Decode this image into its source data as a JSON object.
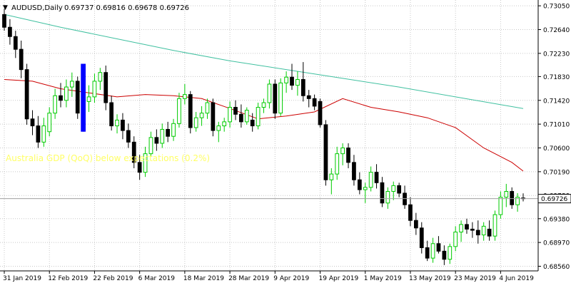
{
  "header": {
    "marker": "▼",
    "symbol_label": "AUDUSD,Daily",
    "ohlc_text": "0.69737 0.69816 0.69678 0.69726"
  },
  "annotation": {
    "text": "Australia GDP (QoQ) below expectations (0.2%)",
    "color": "#ffff66"
  },
  "colors": {
    "background": "#ffffff",
    "grid": "#c8c8c8",
    "bull_candle": "#00cc00",
    "bear_candle": "#000000",
    "highlight_bar": "#0000ff",
    "ma_fast": "#cc0000",
    "ma_slow": "#40c0a0",
    "current_price_line": "#a0a0a0",
    "price_tag_bg": "#ffffff"
  },
  "chart_data": {
    "type": "candlestick",
    "symbol": "AUDUSD",
    "timeframe": "Daily",
    "last": {
      "open": 0.69737,
      "high": 0.69816,
      "low": 0.69678,
      "close": 0.69726
    },
    "current_price_label": "0.69726",
    "y_axis": {
      "ticks": [
        "0.73050",
        "0.72640",
        "0.72230",
        "0.71830",
        "0.71420",
        "0.71010",
        "0.70600",
        "0.70190",
        "0.69780",
        "0.69380",
        "0.68970",
        "0.68560"
      ],
      "ylim": [
        0.6848,
        0.7315
      ]
    },
    "x_axis": {
      "labels": [
        {
          "label": "31 Jan 2019",
          "index": 0
        },
        {
          "label": "12 Feb 2019",
          "index": 8
        },
        {
          "label": "22 Feb 2019",
          "index": 16
        },
        {
          "label": "6 Mar 2019",
          "index": 24
        },
        {
          "label": "18 Mar 2019",
          "index": 32
        },
        {
          "label": "28 Mar 2019",
          "index": 40
        },
        {
          "label": "9 Apr 2019",
          "index": 48
        },
        {
          "label": "19 Apr 2019",
          "index": 56
        },
        {
          "label": "1 May 2019",
          "index": 64
        },
        {
          "label": "13 May 2019",
          "index": 72
        },
        {
          "label": "23 May 2019",
          "index": 80
        },
        {
          "label": "4 Jun 2019",
          "index": 88
        }
      ]
    },
    "highlight_index": 14,
    "candles": [
      [
        0.729,
        0.73,
        0.7262,
        0.7268
      ],
      [
        0.7268,
        0.7282,
        0.7238,
        0.7252
      ],
      [
        0.7252,
        0.7262,
        0.7215,
        0.723
      ],
      [
        0.723,
        0.7245,
        0.718,
        0.7195
      ],
      [
        0.7195,
        0.7205,
        0.71,
        0.711
      ],
      [
        0.711,
        0.7125,
        0.7082,
        0.7098
      ],
      [
        0.7098,
        0.7115,
        0.706,
        0.707
      ],
      [
        0.707,
        0.7112,
        0.7062,
        0.7098
      ],
      [
        0.7088,
        0.713,
        0.708,
        0.712
      ],
      [
        0.712,
        0.7162,
        0.711,
        0.715
      ],
      [
        0.715,
        0.7172,
        0.713,
        0.7142
      ],
      [
        0.7142,
        0.7178,
        0.713,
        0.7165
      ],
      [
        0.7165,
        0.719,
        0.7148,
        0.7175
      ],
      [
        0.7175,
        0.7183,
        0.711,
        0.712
      ],
      [
        0.7095,
        0.7205,
        0.7088,
        0.7178
      ],
      [
        0.714,
        0.7168,
        0.7122,
        0.7148
      ],
      [
        0.7148,
        0.7188,
        0.7138,
        0.7175
      ],
      [
        0.7175,
        0.7198,
        0.716,
        0.719
      ],
      [
        0.719,
        0.7202,
        0.7125,
        0.7138
      ],
      [
        0.7138,
        0.715,
        0.709,
        0.7098
      ],
      [
        0.7098,
        0.7118,
        0.7085,
        0.7108
      ],
      [
        0.7108,
        0.712,
        0.7075,
        0.709
      ],
      [
        0.709,
        0.7102,
        0.706,
        0.707
      ],
      [
        0.707,
        0.708,
        0.7025,
        0.7035
      ],
      [
        0.7035,
        0.7048,
        0.7005,
        0.7018
      ],
      [
        0.7018,
        0.7062,
        0.701,
        0.705
      ],
      [
        0.705,
        0.7088,
        0.7045,
        0.7078
      ],
      [
        0.7078,
        0.7092,
        0.7055,
        0.7068
      ],
      [
        0.7068,
        0.7102,
        0.706,
        0.7092
      ],
      [
        0.7092,
        0.7105,
        0.707,
        0.708
      ],
      [
        0.708,
        0.711,
        0.7072,
        0.7102
      ],
      [
        0.7102,
        0.7155,
        0.7095,
        0.7145
      ],
      [
        0.7145,
        0.717,
        0.7135,
        0.7152
      ],
      [
        0.7152,
        0.7158,
        0.7085,
        0.7095
      ],
      [
        0.7095,
        0.7122,
        0.7088,
        0.7112
      ],
      [
        0.7112,
        0.7132,
        0.7098,
        0.712
      ],
      [
        0.712,
        0.7145,
        0.711,
        0.7138
      ],
      [
        0.7138,
        0.7145,
        0.708,
        0.709
      ],
      [
        0.709,
        0.7105,
        0.707,
        0.7098
      ],
      [
        0.7098,
        0.7112,
        0.7088,
        0.7105
      ],
      [
        0.7105,
        0.714,
        0.7095,
        0.713
      ],
      [
        0.713,
        0.7142,
        0.7108,
        0.7118
      ],
      [
        0.7118,
        0.7135,
        0.7095,
        0.7105
      ],
      [
        0.7105,
        0.713,
        0.71,
        0.7125
      ],
      [
        0.7108,
        0.712,
        0.7088,
        0.7098
      ],
      [
        0.7098,
        0.7138,
        0.7092,
        0.713
      ],
      [
        0.713,
        0.7145,
        0.712,
        0.7138
      ],
      [
        0.7138,
        0.7178,
        0.7128,
        0.717
      ],
      [
        0.717,
        0.7178,
        0.711,
        0.712
      ],
      [
        0.712,
        0.718,
        0.7115,
        0.7172
      ],
      [
        0.7172,
        0.7192,
        0.7155,
        0.7182
      ],
      [
        0.7182,
        0.7205,
        0.716,
        0.7168
      ],
      [
        0.7168,
        0.7192,
        0.715,
        0.7178
      ],
      [
        0.7178,
        0.7208,
        0.714,
        0.715
      ],
      [
        0.715,
        0.716,
        0.713,
        0.7145
      ],
      [
        0.7145,
        0.7152,
        0.7125,
        0.7132
      ],
      [
        0.714,
        0.7145,
        0.7095,
        0.71
      ],
      [
        0.71,
        0.7108,
        0.6995,
        0.7005
      ],
      [
        0.7005,
        0.7025,
        0.698,
        0.7015
      ],
      [
        0.7015,
        0.7062,
        0.7005,
        0.705
      ],
      [
        0.705,
        0.7068,
        0.703,
        0.706
      ],
      [
        0.706,
        0.7068,
        0.7025,
        0.7035
      ],
      [
        0.7035,
        0.7048,
        0.6995,
        0.7005
      ],
      [
        0.7005,
        0.7018,
        0.698,
        0.6988
      ],
      [
        0.6988,
        0.7,
        0.6965,
        0.6992
      ],
      [
        0.6992,
        0.7028,
        0.6985,
        0.7018
      ],
      [
        0.7018,
        0.7032,
        0.699,
        0.7
      ],
      [
        0.7,
        0.701,
        0.6958,
        0.6965
      ],
      [
        0.6965,
        0.6992,
        0.6955,
        0.6985
      ],
      [
        0.6985,
        0.7002,
        0.697,
        0.6995
      ],
      [
        0.6995,
        0.7,
        0.6975,
        0.6982
      ],
      [
        0.6982,
        0.6995,
        0.6955,
        0.6962
      ],
      [
        0.6962,
        0.6975,
        0.6925,
        0.6935
      ],
      [
        0.6935,
        0.6948,
        0.691,
        0.6922
      ],
      [
        0.6922,
        0.6932,
        0.6878,
        0.6888
      ],
      [
        0.6888,
        0.69,
        0.6865,
        0.687
      ],
      [
        0.687,
        0.6905,
        0.6862,
        0.6895
      ],
      [
        0.6895,
        0.6908,
        0.6878,
        0.6882
      ],
      [
        0.6882,
        0.6892,
        0.6858,
        0.6868
      ],
      [
        0.6868,
        0.6895,
        0.686,
        0.689
      ],
      [
        0.689,
        0.6925,
        0.6882,
        0.6915
      ],
      [
        0.6915,
        0.6935,
        0.6898,
        0.6928
      ],
      [
        0.6928,
        0.6938,
        0.6912,
        0.692
      ],
      [
        0.692,
        0.6932,
        0.6905,
        0.6918
      ],
      [
        0.6918,
        0.6935,
        0.6895,
        0.691
      ],
      [
        0.691,
        0.6932,
        0.69,
        0.6925
      ],
      [
        0.692,
        0.6935,
        0.69,
        0.6908
      ],
      [
        0.6908,
        0.6952,
        0.69,
        0.6945
      ],
      [
        0.6945,
        0.6985,
        0.6938,
        0.6975
      ],
      [
        0.6975,
        0.6998,
        0.6958,
        0.6985
      ],
      [
        0.6985,
        0.6992,
        0.6955,
        0.6962
      ],
      [
        0.6962,
        0.6982,
        0.695,
        0.6975
      ],
      [
        0.69737,
        0.69816,
        0.69678,
        0.69726
      ]
    ],
    "series": [
      {
        "key": "ma_slow",
        "points": [
          [
            0,
            0.729
          ],
          [
            10,
            0.7268
          ],
          [
            20,
            0.7248
          ],
          [
            30,
            0.7228
          ],
          [
            40,
            0.721
          ],
          [
            50,
            0.7195
          ],
          [
            60,
            0.718
          ],
          [
            70,
            0.7165
          ],
          [
            80,
            0.7148
          ],
          [
            92,
            0.7128
          ]
        ]
      },
      {
        "key": "ma_fast",
        "points": [
          [
            0,
            0.7178
          ],
          [
            5,
            0.7175
          ],
          [
            10,
            0.7162
          ],
          [
            15,
            0.7155
          ],
          [
            20,
            0.7148
          ],
          [
            25,
            0.7152
          ],
          [
            30,
            0.715
          ],
          [
            35,
            0.7145
          ],
          [
            40,
            0.7128
          ],
          [
            45,
            0.711
          ],
          [
            50,
            0.7115
          ],
          [
            55,
            0.7122
          ],
          [
            60,
            0.7145
          ],
          [
            65,
            0.713
          ],
          [
            70,
            0.7122
          ],
          [
            75,
            0.7112
          ],
          [
            80,
            0.7095
          ],
          [
            85,
            0.706
          ],
          [
            90,
            0.7035
          ],
          [
            92,
            0.702
          ]
        ]
      }
    ]
  }
}
